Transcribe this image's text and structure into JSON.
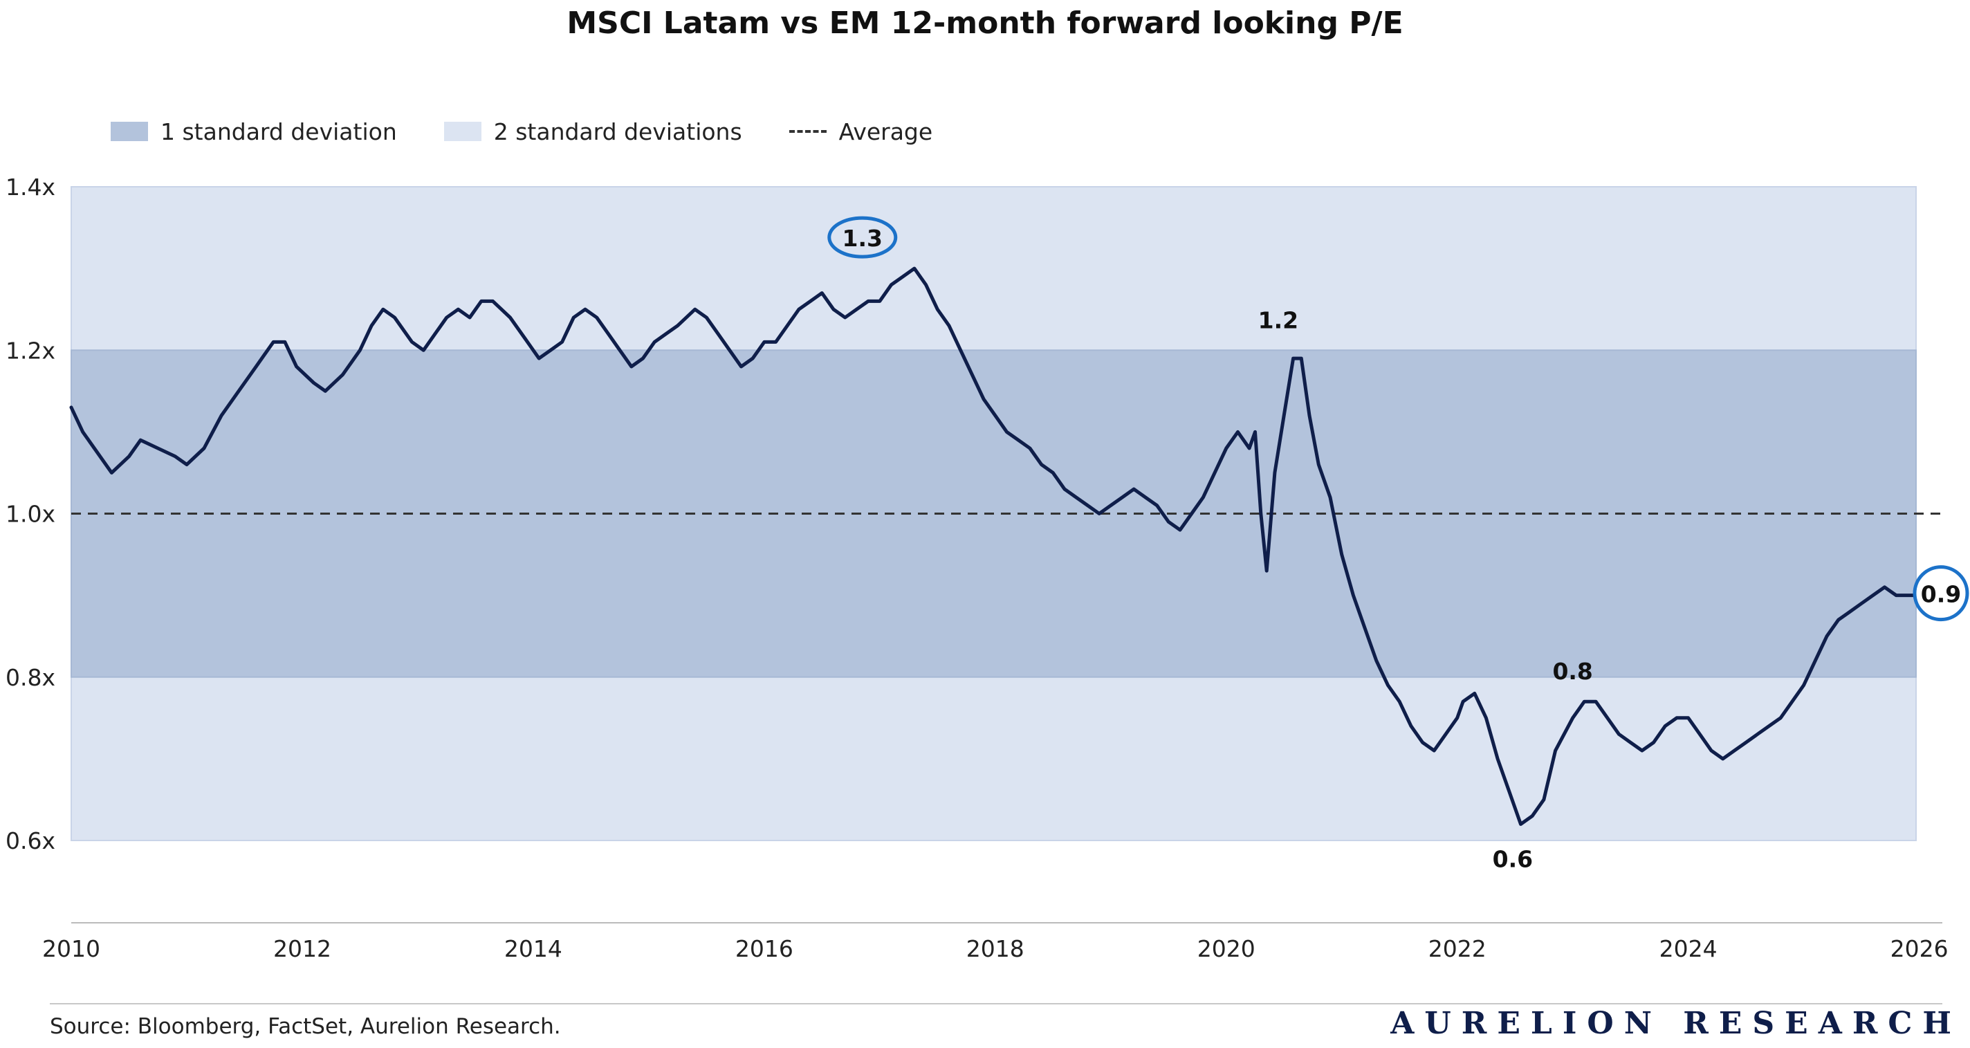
{
  "chart_data": {
    "type": "line",
    "title": "MSCI Latam vs EM 12-month forward looking P/E",
    "xlabel": "",
    "ylabel": "",
    "xlim": [
      2010,
      2026.2
    ],
    "ylim": [
      0.6,
      1.4
    ],
    "x_ticks": [
      2010,
      2012,
      2014,
      2016,
      2018,
      2020,
      2022,
      2024,
      2026
    ],
    "x_tick_labels": [
      "2010",
      "2012",
      "2014",
      "2016",
      "2018",
      "2020",
      "2022",
      "2024",
      "2026"
    ],
    "y_ticks": [
      0.6,
      0.8,
      1.0,
      1.2,
      1.4
    ],
    "y_tick_labels": [
      "0.6x",
      "0.8x",
      "1.0x",
      "1.2x",
      "1.4x"
    ],
    "bands": [
      {
        "name": "2 standard deviations",
        "low": 0.6,
        "high": 1.4,
        "color": "#dce4f2"
      },
      {
        "name": "1 standard deviation",
        "low": 0.8,
        "high": 1.2,
        "color": "#b3c3dc"
      }
    ],
    "reference_lines": [
      {
        "name": "Average",
        "y": 1.0,
        "style": "dashed",
        "color": "#333333"
      }
    ],
    "legend": {
      "position": "top-left",
      "entries": [
        "1 standard deviation",
        "2 standard deviations",
        "Average"
      ]
    },
    "grid": false,
    "series": [
      {
        "color": "#0f1e4a",
        "points": [
          [
            2010.0,
            1.13
          ],
          [
            2010.1,
            1.1
          ],
          [
            2010.25,
            1.07
          ],
          [
            2010.35,
            1.05
          ],
          [
            2010.5,
            1.07
          ],
          [
            2010.6,
            1.09
          ],
          [
            2010.75,
            1.08
          ],
          [
            2010.9,
            1.07
          ],
          [
            2011.0,
            1.06
          ],
          [
            2011.15,
            1.08
          ],
          [
            2011.3,
            1.12
          ],
          [
            2011.45,
            1.15
          ],
          [
            2011.6,
            1.18
          ],
          [
            2011.75,
            1.21
          ],
          [
            2011.85,
            1.21
          ],
          [
            2011.95,
            1.18
          ],
          [
            2012.1,
            1.16
          ],
          [
            2012.2,
            1.15
          ],
          [
            2012.35,
            1.17
          ],
          [
            2012.5,
            1.2
          ],
          [
            2012.6,
            1.23
          ],
          [
            2012.7,
            1.25
          ],
          [
            2012.8,
            1.24
          ],
          [
            2012.95,
            1.21
          ],
          [
            2013.05,
            1.2
          ],
          [
            2013.15,
            1.22
          ],
          [
            2013.25,
            1.24
          ],
          [
            2013.35,
            1.25
          ],
          [
            2013.45,
            1.24
          ],
          [
            2013.55,
            1.26
          ],
          [
            2013.65,
            1.26
          ],
          [
            2013.8,
            1.24
          ],
          [
            2013.95,
            1.21
          ],
          [
            2014.05,
            1.19
          ],
          [
            2014.15,
            1.2
          ],
          [
            2014.25,
            1.21
          ],
          [
            2014.35,
            1.24
          ],
          [
            2014.45,
            1.25
          ],
          [
            2014.55,
            1.24
          ],
          [
            2014.65,
            1.22
          ],
          [
            2014.75,
            1.2
          ],
          [
            2014.85,
            1.18
          ],
          [
            2014.95,
            1.19
          ],
          [
            2015.05,
            1.21
          ],
          [
            2015.15,
            1.22
          ],
          [
            2015.25,
            1.23
          ],
          [
            2015.4,
            1.25
          ],
          [
            2015.5,
            1.24
          ],
          [
            2015.6,
            1.22
          ],
          [
            2015.7,
            1.2
          ],
          [
            2015.8,
            1.18
          ],
          [
            2015.9,
            1.19
          ],
          [
            2016.0,
            1.21
          ],
          [
            2016.1,
            1.21
          ],
          [
            2016.2,
            1.23
          ],
          [
            2016.3,
            1.25
          ],
          [
            2016.4,
            1.26
          ],
          [
            2016.5,
            1.27
          ],
          [
            2016.6,
            1.25
          ],
          [
            2016.7,
            1.24
          ],
          [
            2016.8,
            1.25
          ],
          [
            2016.9,
            1.26
          ],
          [
            2017.0,
            1.26
          ],
          [
            2017.1,
            1.28
          ],
          [
            2017.2,
            1.29
          ],
          [
            2017.3,
            1.3
          ],
          [
            2017.4,
            1.28
          ],
          [
            2017.5,
            1.25
          ],
          [
            2017.6,
            1.23
          ],
          [
            2017.7,
            1.2
          ],
          [
            2017.8,
            1.17
          ],
          [
            2017.9,
            1.14
          ],
          [
            2018.0,
            1.12
          ],
          [
            2018.1,
            1.1
          ],
          [
            2018.2,
            1.09
          ],
          [
            2018.3,
            1.08
          ],
          [
            2018.4,
            1.06
          ],
          [
            2018.5,
            1.05
          ],
          [
            2018.6,
            1.03
          ],
          [
            2018.7,
            1.02
          ],
          [
            2018.8,
            1.01
          ],
          [
            2018.9,
            1.0
          ],
          [
            2019.0,
            1.01
          ],
          [
            2019.1,
            1.02
          ],
          [
            2019.2,
            1.03
          ],
          [
            2019.3,
            1.02
          ],
          [
            2019.4,
            1.01
          ],
          [
            2019.5,
            0.99
          ],
          [
            2019.6,
            0.98
          ],
          [
            2019.7,
            1.0
          ],
          [
            2019.8,
            1.02
          ],
          [
            2019.9,
            1.05
          ],
          [
            2020.0,
            1.08
          ],
          [
            2020.1,
            1.1
          ],
          [
            2020.15,
            1.09
          ],
          [
            2020.2,
            1.08
          ],
          [
            2020.25,
            1.1
          ],
          [
            2020.3,
            1.0
          ],
          [
            2020.35,
            0.93
          ],
          [
            2020.42,
            1.05
          ],
          [
            2020.5,
            1.12
          ],
          [
            2020.58,
            1.19
          ],
          [
            2020.65,
            1.19
          ],
          [
            2020.72,
            1.12
          ],
          [
            2020.8,
            1.06
          ],
          [
            2020.9,
            1.02
          ],
          [
            2021.0,
            0.95
          ],
          [
            2021.1,
            0.9
          ],
          [
            2021.2,
            0.86
          ],
          [
            2021.3,
            0.82
          ],
          [
            2021.4,
            0.79
          ],
          [
            2021.5,
            0.77
          ],
          [
            2021.6,
            0.74
          ],
          [
            2021.7,
            0.72
          ],
          [
            2021.8,
            0.71
          ],
          [
            2021.9,
            0.73
          ],
          [
            2022.0,
            0.75
          ],
          [
            2022.05,
            0.77
          ],
          [
            2022.15,
            0.78
          ],
          [
            2022.25,
            0.75
          ],
          [
            2022.35,
            0.7
          ],
          [
            2022.45,
            0.66
          ],
          [
            2022.55,
            0.62
          ],
          [
            2022.65,
            0.63
          ],
          [
            2022.75,
            0.65
          ],
          [
            2022.85,
            0.71
          ],
          [
            2023.0,
            0.75
          ],
          [
            2023.1,
            0.77
          ],
          [
            2023.2,
            0.77
          ],
          [
            2023.3,
            0.75
          ],
          [
            2023.4,
            0.73
          ],
          [
            2023.5,
            0.72
          ],
          [
            2023.6,
            0.71
          ],
          [
            2023.7,
            0.72
          ],
          [
            2023.8,
            0.74
          ],
          [
            2023.9,
            0.75
          ],
          [
            2024.0,
            0.75
          ],
          [
            2024.1,
            0.73
          ],
          [
            2024.2,
            0.71
          ],
          [
            2024.3,
            0.7
          ],
          [
            2024.4,
            0.71
          ],
          [
            2024.5,
            0.72
          ],
          [
            2024.6,
            0.73
          ],
          [
            2024.7,
            0.74
          ],
          [
            2024.8,
            0.75
          ],
          [
            2024.9,
            0.77
          ],
          [
            2025.0,
            0.79
          ],
          [
            2025.1,
            0.82
          ],
          [
            2025.2,
            0.85
          ],
          [
            2025.3,
            0.87
          ],
          [
            2025.4,
            0.88
          ],
          [
            2025.5,
            0.89
          ],
          [
            2025.6,
            0.9
          ],
          [
            2025.7,
            0.91
          ],
          [
            2025.8,
            0.9
          ],
          [
            2025.9,
            0.9
          ],
          [
            2026.0,
            0.9
          ],
          [
            2026.1,
            0.9
          ]
        ]
      }
    ],
    "annotations": [
      {
        "text": "1.3",
        "x": 2016.85,
        "y": 1.3,
        "position": "above",
        "circled": true
      },
      {
        "text": "1.2",
        "x": 2020.45,
        "y": 1.2,
        "position": "above",
        "circled": false
      },
      {
        "text": "0.8",
        "x": 2023.0,
        "y": 0.77,
        "position": "above",
        "circled": false
      },
      {
        "text": "0.6",
        "x": 2022.48,
        "y": 0.62,
        "position": "below",
        "circled": false
      },
      {
        "text": "0.9",
        "x": 2026.2,
        "y": 0.9,
        "position": "right",
        "circled": true
      }
    ],
    "line_color": "#0f1e4a",
    "circle_color": "#1c72c9"
  },
  "source": "Source: Bloomberg, FactSet, Aurelion Research.",
  "brand": "AURELION RESEARCH"
}
